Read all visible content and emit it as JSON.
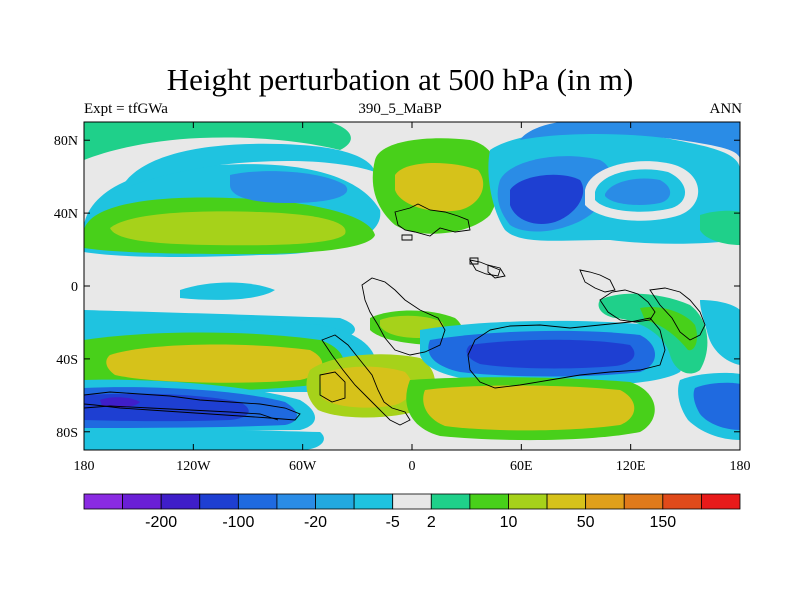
{
  "chart_data": {
    "type": "heatmap",
    "title": "Height perturbation at 500 hPa (in m)",
    "left_label": "Expt = tfGWa",
    "center_label": "390_5_MaBP",
    "right_label": "ANN",
    "x_ticks": [
      "180",
      "120W",
      "60W",
      "0",
      "60E",
      "120E",
      "180"
    ],
    "x_tick_values": [
      -180,
      -120,
      -60,
      0,
      60,
      120,
      180
    ],
    "y_ticks": [
      "80N",
      "40N",
      "0",
      "40S",
      "80S"
    ],
    "y_tick_values": [
      80,
      40,
      0,
      -40,
      -80
    ],
    "xlim": [
      -180,
      180
    ],
    "ylim": [
      -90,
      90
    ],
    "colorbar": {
      "colors": [
        "#8a2be2",
        "#6a1fd6",
        "#3f1ec9",
        "#1e3fd2",
        "#1f6ae0",
        "#2a8ce6",
        "#22a9e0",
        "#1fc3e0",
        "#e8e8e8",
        "#1fd08a",
        "#48d01a",
        "#a6d21a",
        "#d6c21a",
        "#e0a01a",
        "#e07a1a",
        "#e04a1a",
        "#e81a1a"
      ],
      "labels": [
        "-200",
        "-100",
        "-20",
        "-5",
        "2",
        "10",
        "50",
        "150"
      ],
      "label_after_box": [
        1,
        3,
        5,
        7,
        8,
        10,
        12,
        14
      ]
    }
  }
}
